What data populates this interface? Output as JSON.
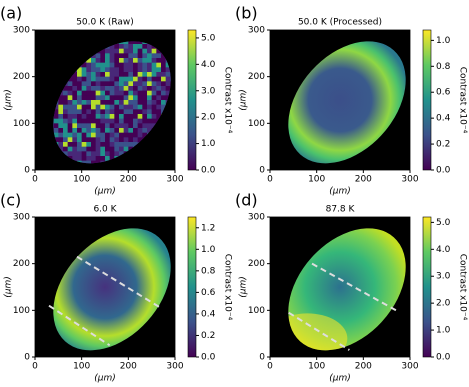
{
  "chart_data": [
    {
      "type": "heatmap",
      "panel_label": "(a)",
      "title": "50.0 K (Raw)",
      "xlabel": "(μm)",
      "ylabel": "(μm)",
      "xlim": [
        0,
        300
      ],
      "xticks": [
        0,
        100,
        200,
        300
      ],
      "ylim": [
        0,
        300
      ],
      "yticks": [
        0,
        100,
        200,
        300
      ],
      "colorbar": {
        "label": "Contrast x10⁻⁴",
        "lim": [
          0,
          5.3
        ],
        "ticks": [
          {
            "value": 0,
            "label": "0.0"
          },
          {
            "value": 1,
            "label": "1.0"
          },
          {
            "value": 2,
            "label": "2.0"
          },
          {
            "value": 3,
            "label": "3.0"
          },
          {
            "value": 4,
            "label": "4.0"
          },
          {
            "value": 5,
            "label": "5.0"
          }
        ]
      }
    },
    {
      "type": "heatmap",
      "panel_label": "(b)",
      "title": "50.0 K (Processed)",
      "xlabel": "(μm)",
      "ylabel": "(μm)",
      "xlim": [
        0,
        300
      ],
      "xticks": [
        0,
        100,
        200,
        300
      ],
      "ylim": [
        0,
        300
      ],
      "yticks": [
        0,
        100,
        200,
        300
      ],
      "colorbar": {
        "label": "Contrast x10⁻⁴",
        "lim": [
          0,
          1.08
        ],
        "ticks": [
          {
            "value": 0,
            "label": "0.0"
          },
          {
            "value": 0.2,
            "label": "0.2"
          },
          {
            "value": 0.4,
            "label": "0.4"
          },
          {
            "value": 0.6,
            "label": "0.6"
          },
          {
            "value": 0.8,
            "label": "0.8"
          },
          {
            "value": 1,
            "label": "1.0"
          }
        ]
      }
    },
    {
      "type": "heatmap",
      "panel_label": "(c)",
      "title": "6.0 K",
      "xlabel": "(μm)",
      "ylabel": "(μm)",
      "xlim": [
        0,
        300
      ],
      "xticks": [
        0,
        100,
        200,
        300
      ],
      "ylim": [
        0,
        300
      ],
      "yticks": [
        0,
        100,
        200,
        300
      ],
      "colorbar": {
        "label": "Contrast x10⁻⁴",
        "lim": [
          0,
          1.3
        ],
        "ticks": [
          {
            "value": 0,
            "label": "0.0"
          },
          {
            "value": 0.2,
            "label": "0.2"
          },
          {
            "value": 0.4,
            "label": "0.4"
          },
          {
            "value": 0.6,
            "label": "0.6"
          },
          {
            "value": 0.8,
            "label": "0.8"
          },
          {
            "value": 1,
            "label": "1.0"
          },
          {
            "value": 1.2,
            "label": "1.2"
          }
        ]
      }
    },
    {
      "type": "heatmap",
      "panel_label": "(d)",
      "title": "87.8 K",
      "xlabel": "(μm)",
      "ylabel": "(μm)",
      "xlim": [
        0,
        300
      ],
      "xticks": [
        0,
        100,
        200,
        300
      ],
      "ylim": [
        0,
        300
      ],
      "yticks": [
        0,
        100,
        200,
        300
      ],
      "colorbar": {
        "label": "Contrast x10⁻⁴",
        "lim": [
          0,
          5.2
        ],
        "ticks": [
          {
            "value": 0,
            "label": "0.0"
          },
          {
            "value": 1,
            "label": "1.0"
          },
          {
            "value": 2,
            "label": "2.0"
          },
          {
            "value": 3,
            "label": "3.0"
          },
          {
            "value": 4,
            "label": "4.0"
          },
          {
            "value": 5,
            "label": "5.0"
          }
        ]
      }
    }
  ]
}
